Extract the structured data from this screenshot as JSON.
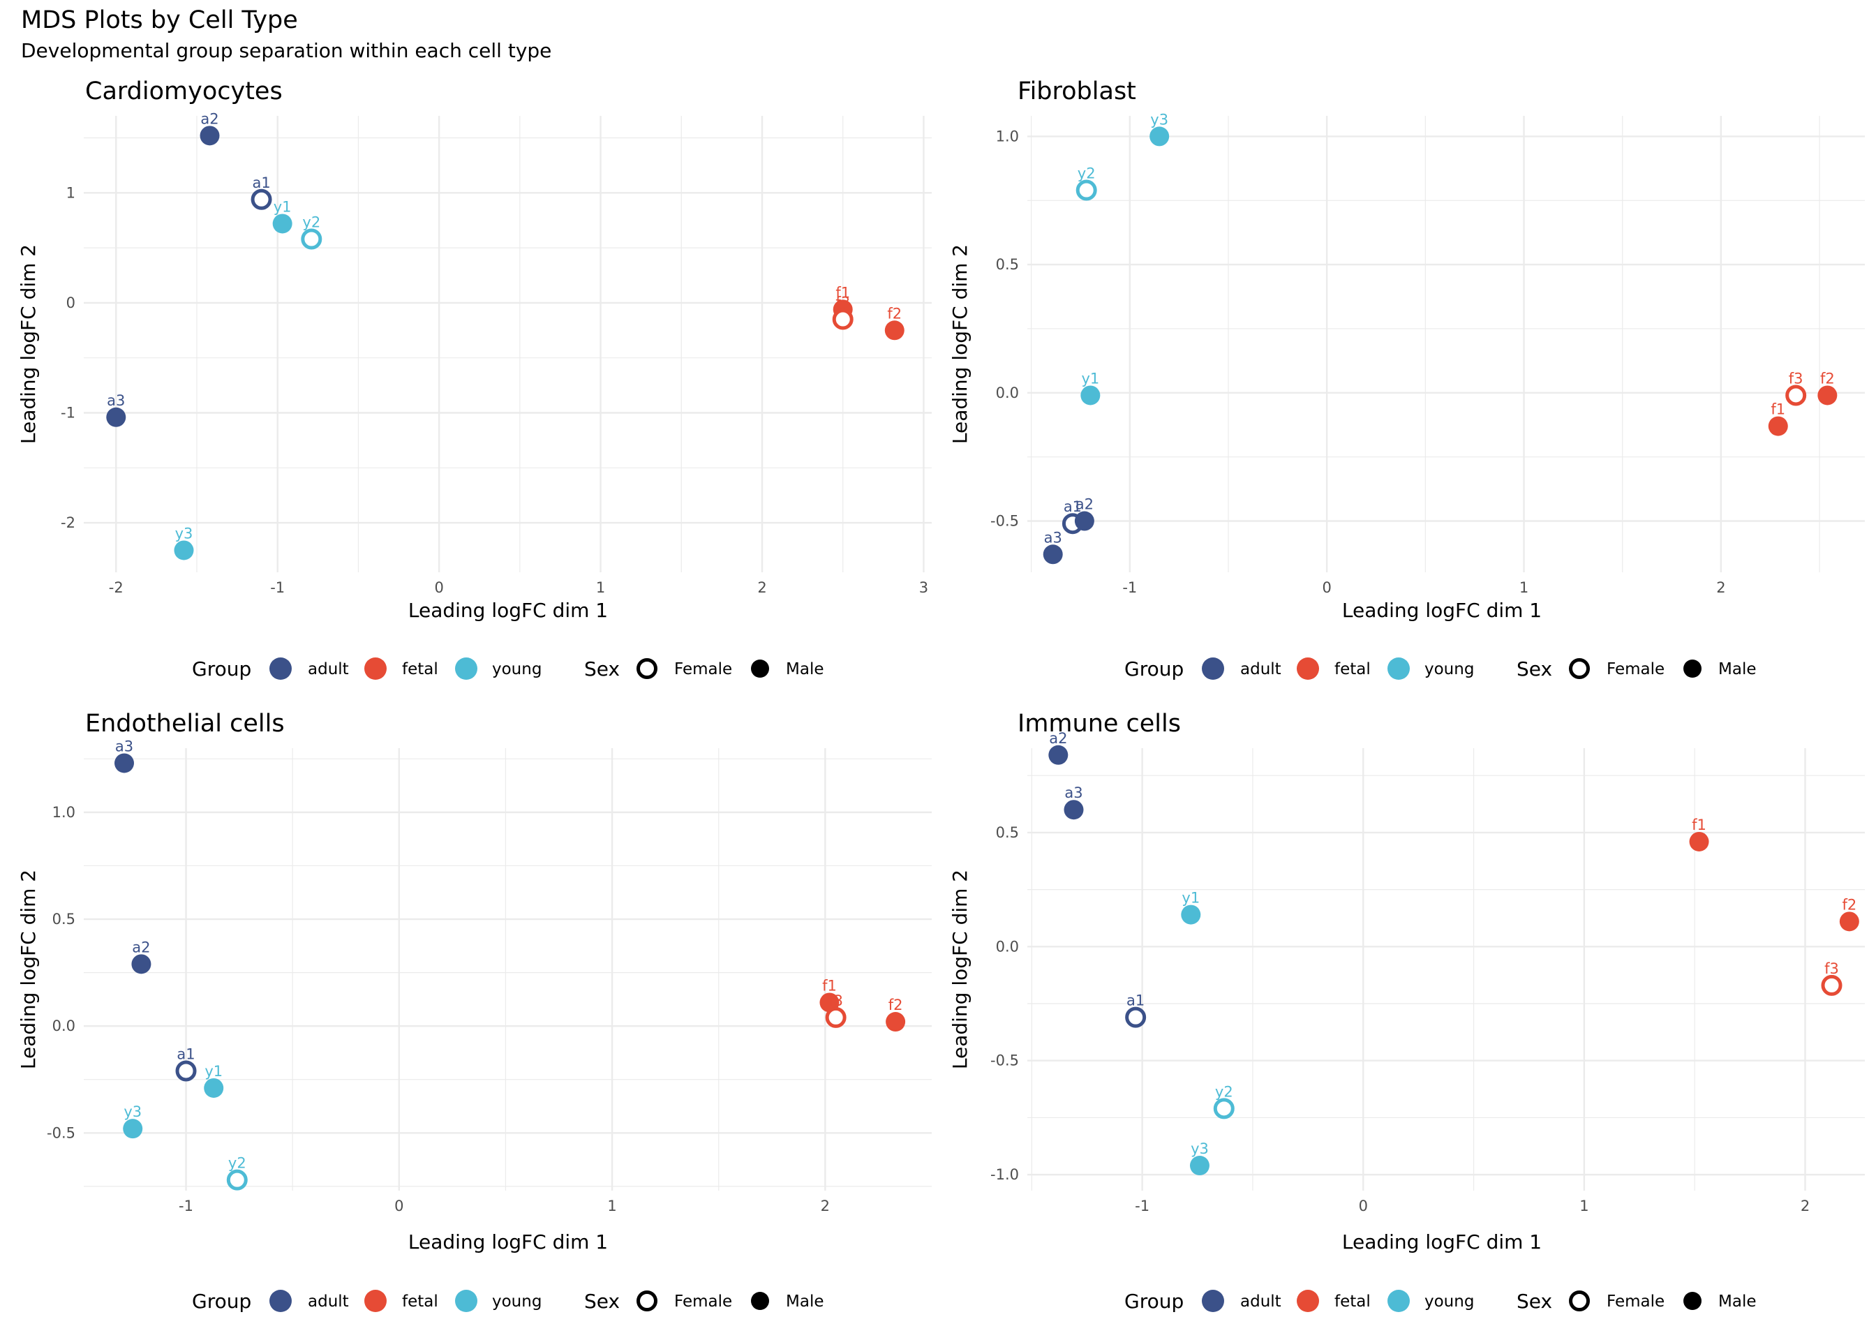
{
  "title": "MDS Plots by Cell Type",
  "subtitle": "Developmental group separation within each cell type",
  "colors": {
    "adult": "#3B5189",
    "fetal": "#E64B35",
    "young": "#4DBBD5",
    "grid": "#ebebeb",
    "tick": "#4d4d4d"
  },
  "legend": {
    "group_title": "Group",
    "groups": [
      "adult",
      "fetal",
      "young"
    ],
    "sex_title": "Sex",
    "sexes": [
      "Female",
      "Male"
    ]
  },
  "chart_data": [
    {
      "type": "scatter",
      "title": "Cardiomyocytes",
      "xlabel": "Leading logFC dim 1",
      "ylabel": "Leading logFC dim 2",
      "xlim": [
        -2.2,
        3.05
      ],
      "ylim": [
        -2.45,
        1.7
      ],
      "xticks": [
        -2,
        -1,
        0,
        1,
        2,
        3
      ],
      "xtick_labels": [
        "-2",
        "-1",
        "0",
        "1",
        "2",
        "3"
      ],
      "yticks": [
        -2,
        -1,
        0,
        1
      ],
      "ytick_labels": [
        "-2",
        "-1",
        "0",
        "1"
      ],
      "points": [
        {
          "label": "a1",
          "group": "adult",
          "sex": "Female",
          "x": -1.1,
          "y": 0.94
        },
        {
          "label": "a2",
          "group": "adult",
          "sex": "Male",
          "x": -1.42,
          "y": 1.52
        },
        {
          "label": "a3",
          "group": "adult",
          "sex": "Male",
          "x": -2.0,
          "y": -1.04
        },
        {
          "label": "f1",
          "group": "fetal",
          "sex": "Male",
          "x": 2.5,
          "y": -0.06
        },
        {
          "label": "f3",
          "group": "fetal",
          "sex": "Female",
          "x": 2.5,
          "y": -0.15
        },
        {
          "label": "f2",
          "group": "fetal",
          "sex": "Male",
          "x": 2.82,
          "y": -0.25
        },
        {
          "label": "y1",
          "group": "young",
          "sex": "Male",
          "x": -0.97,
          "y": 0.72
        },
        {
          "label": "y2",
          "group": "young",
          "sex": "Female",
          "x": -0.79,
          "y": 0.58
        },
        {
          "label": "y3",
          "group": "young",
          "sex": "Male",
          "x": -1.58,
          "y": -2.25
        }
      ]
    },
    {
      "type": "scatter",
      "title": "Fibroblast",
      "xlabel": "Leading logFC dim 1",
      "ylabel": "Leading logFC dim 2",
      "xlim": [
        -1.52,
        2.73
      ],
      "ylim": [
        -0.7,
        1.08
      ],
      "xticks": [
        -1,
        0,
        1,
        2
      ],
      "xtick_labels": [
        "-1",
        "0",
        "1",
        "2"
      ],
      "yticks": [
        -0.5,
        0,
        0.5,
        1.0
      ],
      "ytick_labels": [
        "-0.5",
        "0.0",
        "0.5",
        "1.0"
      ],
      "points": [
        {
          "label": "a1",
          "group": "adult",
          "sex": "Female",
          "x": -1.29,
          "y": -0.51
        },
        {
          "label": "a2",
          "group": "adult",
          "sex": "Male",
          "x": -1.23,
          "y": -0.5
        },
        {
          "label": "a3",
          "group": "adult",
          "sex": "Male",
          "x": -1.39,
          "y": -0.63
        },
        {
          "label": "f1",
          "group": "fetal",
          "sex": "Male",
          "x": 2.29,
          "y": -0.13
        },
        {
          "label": "f3",
          "group": "fetal",
          "sex": "Female",
          "x": 2.38,
          "y": -0.01
        },
        {
          "label": "f2",
          "group": "fetal",
          "sex": "Male",
          "x": 2.54,
          "y": -0.01
        },
        {
          "label": "y1",
          "group": "young",
          "sex": "Male",
          "x": -1.2,
          "y": -0.01
        },
        {
          "label": "y2",
          "group": "young",
          "sex": "Female",
          "x": -1.22,
          "y": 0.79
        },
        {
          "label": "y3",
          "group": "young",
          "sex": "Male",
          "x": -0.85,
          "y": 1.0
        }
      ]
    },
    {
      "type": "scatter",
      "title": "Endothelial cells",
      "xlabel": "Leading logFC dim 1",
      "ylabel": "Leading logFC dim 2",
      "xlim": [
        -1.48,
        2.5
      ],
      "ylim": [
        -0.77,
        1.3
      ],
      "xticks": [
        -1,
        0,
        1,
        2
      ],
      "xtick_labels": [
        "-1",
        "0",
        "1",
        "2"
      ],
      "yticks": [
        -0.5,
        0,
        0.5,
        1.0
      ],
      "ytick_labels": [
        "-0.5",
        "0.0",
        "0.5",
        "1.0"
      ],
      "points": [
        {
          "label": "a1",
          "group": "adult",
          "sex": "Female",
          "x": -1.0,
          "y": -0.21
        },
        {
          "label": "a2",
          "group": "adult",
          "sex": "Male",
          "x": -1.21,
          "y": 0.29
        },
        {
          "label": "a3",
          "group": "adult",
          "sex": "Male",
          "x": -1.29,
          "y": 1.23
        },
        {
          "label": "f1",
          "group": "fetal",
          "sex": "Male",
          "x": 2.02,
          "y": 0.11
        },
        {
          "label": "f3",
          "group": "fetal",
          "sex": "Female",
          "x": 2.05,
          "y": 0.04
        },
        {
          "label": "f2",
          "group": "fetal",
          "sex": "Male",
          "x": 2.33,
          "y": 0.02
        },
        {
          "label": "y1",
          "group": "young",
          "sex": "Male",
          "x": -0.87,
          "y": -0.29
        },
        {
          "label": "y2",
          "group": "young",
          "sex": "Female",
          "x": -0.76,
          "y": -0.72
        },
        {
          "label": "y3",
          "group": "young",
          "sex": "Male",
          "x": -1.25,
          "y": -0.48
        }
      ]
    },
    {
      "type": "scatter",
      "title": "Immune cells",
      "xlabel": "Leading logFC dim 1",
      "ylabel": "Leading logFC dim 2",
      "xlim": [
        -1.52,
        2.27
      ],
      "ylim": [
        -1.07,
        0.87
      ],
      "xticks": [
        -1,
        0,
        1,
        2
      ],
      "xtick_labels": [
        "-1",
        "0",
        "1",
        "2"
      ],
      "yticks": [
        -1.0,
        -0.5,
        0,
        0.5
      ],
      "ytick_labels": [
        "-1.0",
        "-0.5",
        "0.0",
        "0.5"
      ],
      "points": [
        {
          "label": "a1",
          "group": "adult",
          "sex": "Female",
          "x": -1.03,
          "y": -0.31
        },
        {
          "label": "a2",
          "group": "adult",
          "sex": "Male",
          "x": -1.38,
          "y": 0.84
        },
        {
          "label": "a3",
          "group": "adult",
          "sex": "Male",
          "x": -1.31,
          "y": 0.6
        },
        {
          "label": "f1",
          "group": "fetal",
          "sex": "Male",
          "x": 1.52,
          "y": 0.46
        },
        {
          "label": "f2",
          "group": "fetal",
          "sex": "Male",
          "x": 2.2,
          "y": 0.11
        },
        {
          "label": "f3",
          "group": "fetal",
          "sex": "Female",
          "x": 2.12,
          "y": -0.17
        },
        {
          "label": "y1",
          "group": "young",
          "sex": "Male",
          "x": -0.78,
          "y": 0.14
        },
        {
          "label": "y2",
          "group": "young",
          "sex": "Female",
          "x": -0.63,
          "y": -0.71
        },
        {
          "label": "y3",
          "group": "young",
          "sex": "Male",
          "x": -0.74,
          "y": -0.96
        }
      ]
    }
  ]
}
